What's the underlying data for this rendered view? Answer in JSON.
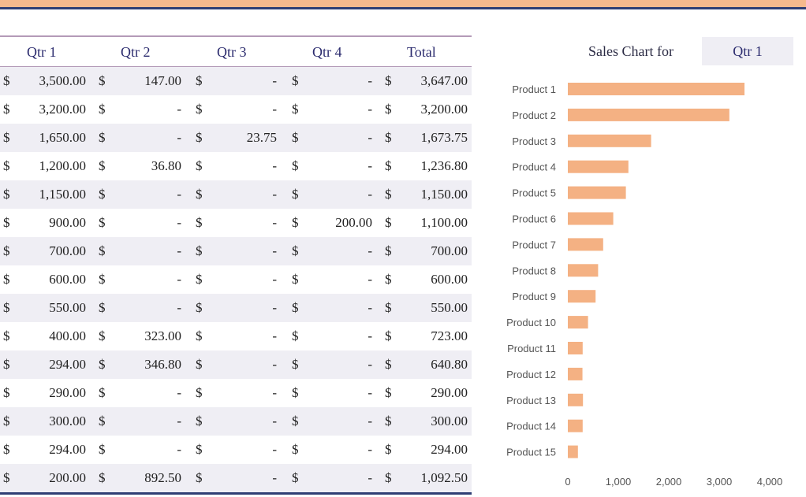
{
  "table": {
    "headers": [
      "Qtr 1",
      "Qtr 2",
      "Qtr 3",
      "Qtr 4",
      "Total"
    ],
    "currency": "$",
    "rows": [
      [
        "3,500.00",
        "147.00",
        "-",
        "-",
        "3,647.00"
      ],
      [
        "3,200.00",
        "-",
        "-",
        "-",
        "3,200.00"
      ],
      [
        "1,650.00",
        "-",
        "23.75",
        "-",
        "1,673.75"
      ],
      [
        "1,200.00",
        "36.80",
        "-",
        "-",
        "1,236.80"
      ],
      [
        "1,150.00",
        "-",
        "-",
        "-",
        "1,150.00"
      ],
      [
        "900.00",
        "-",
        "-",
        "200.00",
        "1,100.00"
      ],
      [
        "700.00",
        "-",
        "-",
        "-",
        "700.00"
      ],
      [
        "600.00",
        "-",
        "-",
        "-",
        "600.00"
      ],
      [
        "550.00",
        "-",
        "-",
        "-",
        "550.00"
      ],
      [
        "400.00",
        "323.00",
        "-",
        "-",
        "723.00"
      ],
      [
        "294.00",
        "346.80",
        "-",
        "-",
        "640.80"
      ],
      [
        "290.00",
        "-",
        "-",
        "-",
        "290.00"
      ],
      [
        "300.00",
        "-",
        "-",
        "-",
        "300.00"
      ],
      [
        "294.00",
        "-",
        "-",
        "-",
        "294.00"
      ],
      [
        "200.00",
        "892.50",
        "-",
        "-",
        "1,092.50"
      ]
    ]
  },
  "chart_title": "Sales Chart for",
  "selected_quarter": "Qtr 1",
  "colors": {
    "bar": "#f4b183",
    "accent_top": "#f6b98d",
    "navy": "#2f3e74",
    "shade": "#efeef4"
  },
  "chart_data": {
    "type": "bar",
    "orientation": "horizontal",
    "categories": [
      "Product 1",
      "Product 2",
      "Product 3",
      "Product 4",
      "Product 5",
      "Product 6",
      "Product 7",
      "Product 8",
      "Product 9",
      "Product 10",
      "Product 11",
      "Product 12",
      "Product 13",
      "Product 14",
      "Product 15"
    ],
    "values": [
      3500,
      3200,
      1650,
      1200,
      1150,
      900,
      700,
      600,
      550,
      400,
      294,
      290,
      300,
      294,
      200
    ],
    "xlim": [
      0,
      4000
    ],
    "xticks": [
      "0",
      "1,000",
      "2,000",
      "3,000",
      "4,000"
    ],
    "grid": false
  }
}
